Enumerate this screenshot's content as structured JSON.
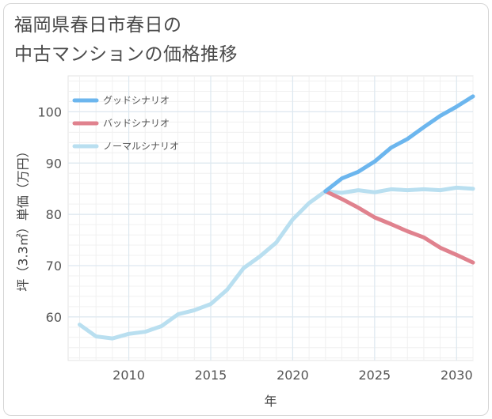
{
  "title_line1": "福岡県春日市春日の",
  "title_line2": "中古マンションの価格推移",
  "chart_data": {
    "type": "line",
    "xlabel": "年",
    "ylabel": "坪（3.3㎡）単価（万円）",
    "xlim": [
      2006.3,
      2031
    ],
    "ylim": [
      51.5,
      107
    ],
    "xticks": [
      2010,
      2015,
      2020,
      2025,
      2030
    ],
    "yticks": [
      60,
      70,
      80,
      90,
      100
    ],
    "grid": true,
    "legend_position": "top-left",
    "series": [
      {
        "name": "グッドシナリオ",
        "color": "#6cb6ee",
        "x": [
          2022,
          2023,
          2024,
          2025,
          2026,
          2027,
          2028,
          2029,
          2030,
          2031
        ],
        "y": [
          84.5,
          87.0,
          88.3,
          90.3,
          93.0,
          94.7,
          97.0,
          99.2,
          101.0,
          103.0
        ]
      },
      {
        "name": "バッドシナリオ",
        "color": "#e0828e",
        "x": [
          2022,
          2023,
          2024,
          2025,
          2026,
          2027,
          2028,
          2029,
          2030,
          2031
        ],
        "y": [
          84.5,
          83.0,
          81.3,
          79.4,
          78.1,
          76.7,
          75.5,
          73.5,
          72.1,
          70.6
        ]
      },
      {
        "name": "ノーマルシナリオ",
        "color": "#b9dff0",
        "x": [
          2007,
          2008,
          2009,
          2010,
          2011,
          2012,
          2013,
          2014,
          2015,
          2016,
          2017,
          2018,
          2019,
          2020,
          2021,
          2022,
          2023,
          2024,
          2025,
          2026,
          2027,
          2028,
          2029,
          2030,
          2031
        ],
        "y": [
          58.5,
          56.2,
          55.8,
          56.7,
          57.1,
          58.2,
          60.5,
          61.3,
          62.5,
          65.3,
          69.5,
          71.8,
          74.5,
          79.0,
          82.2,
          84.5,
          84.2,
          84.7,
          84.3,
          84.9,
          84.7,
          84.9,
          84.7,
          85.2,
          85.0
        ]
      }
    ]
  }
}
